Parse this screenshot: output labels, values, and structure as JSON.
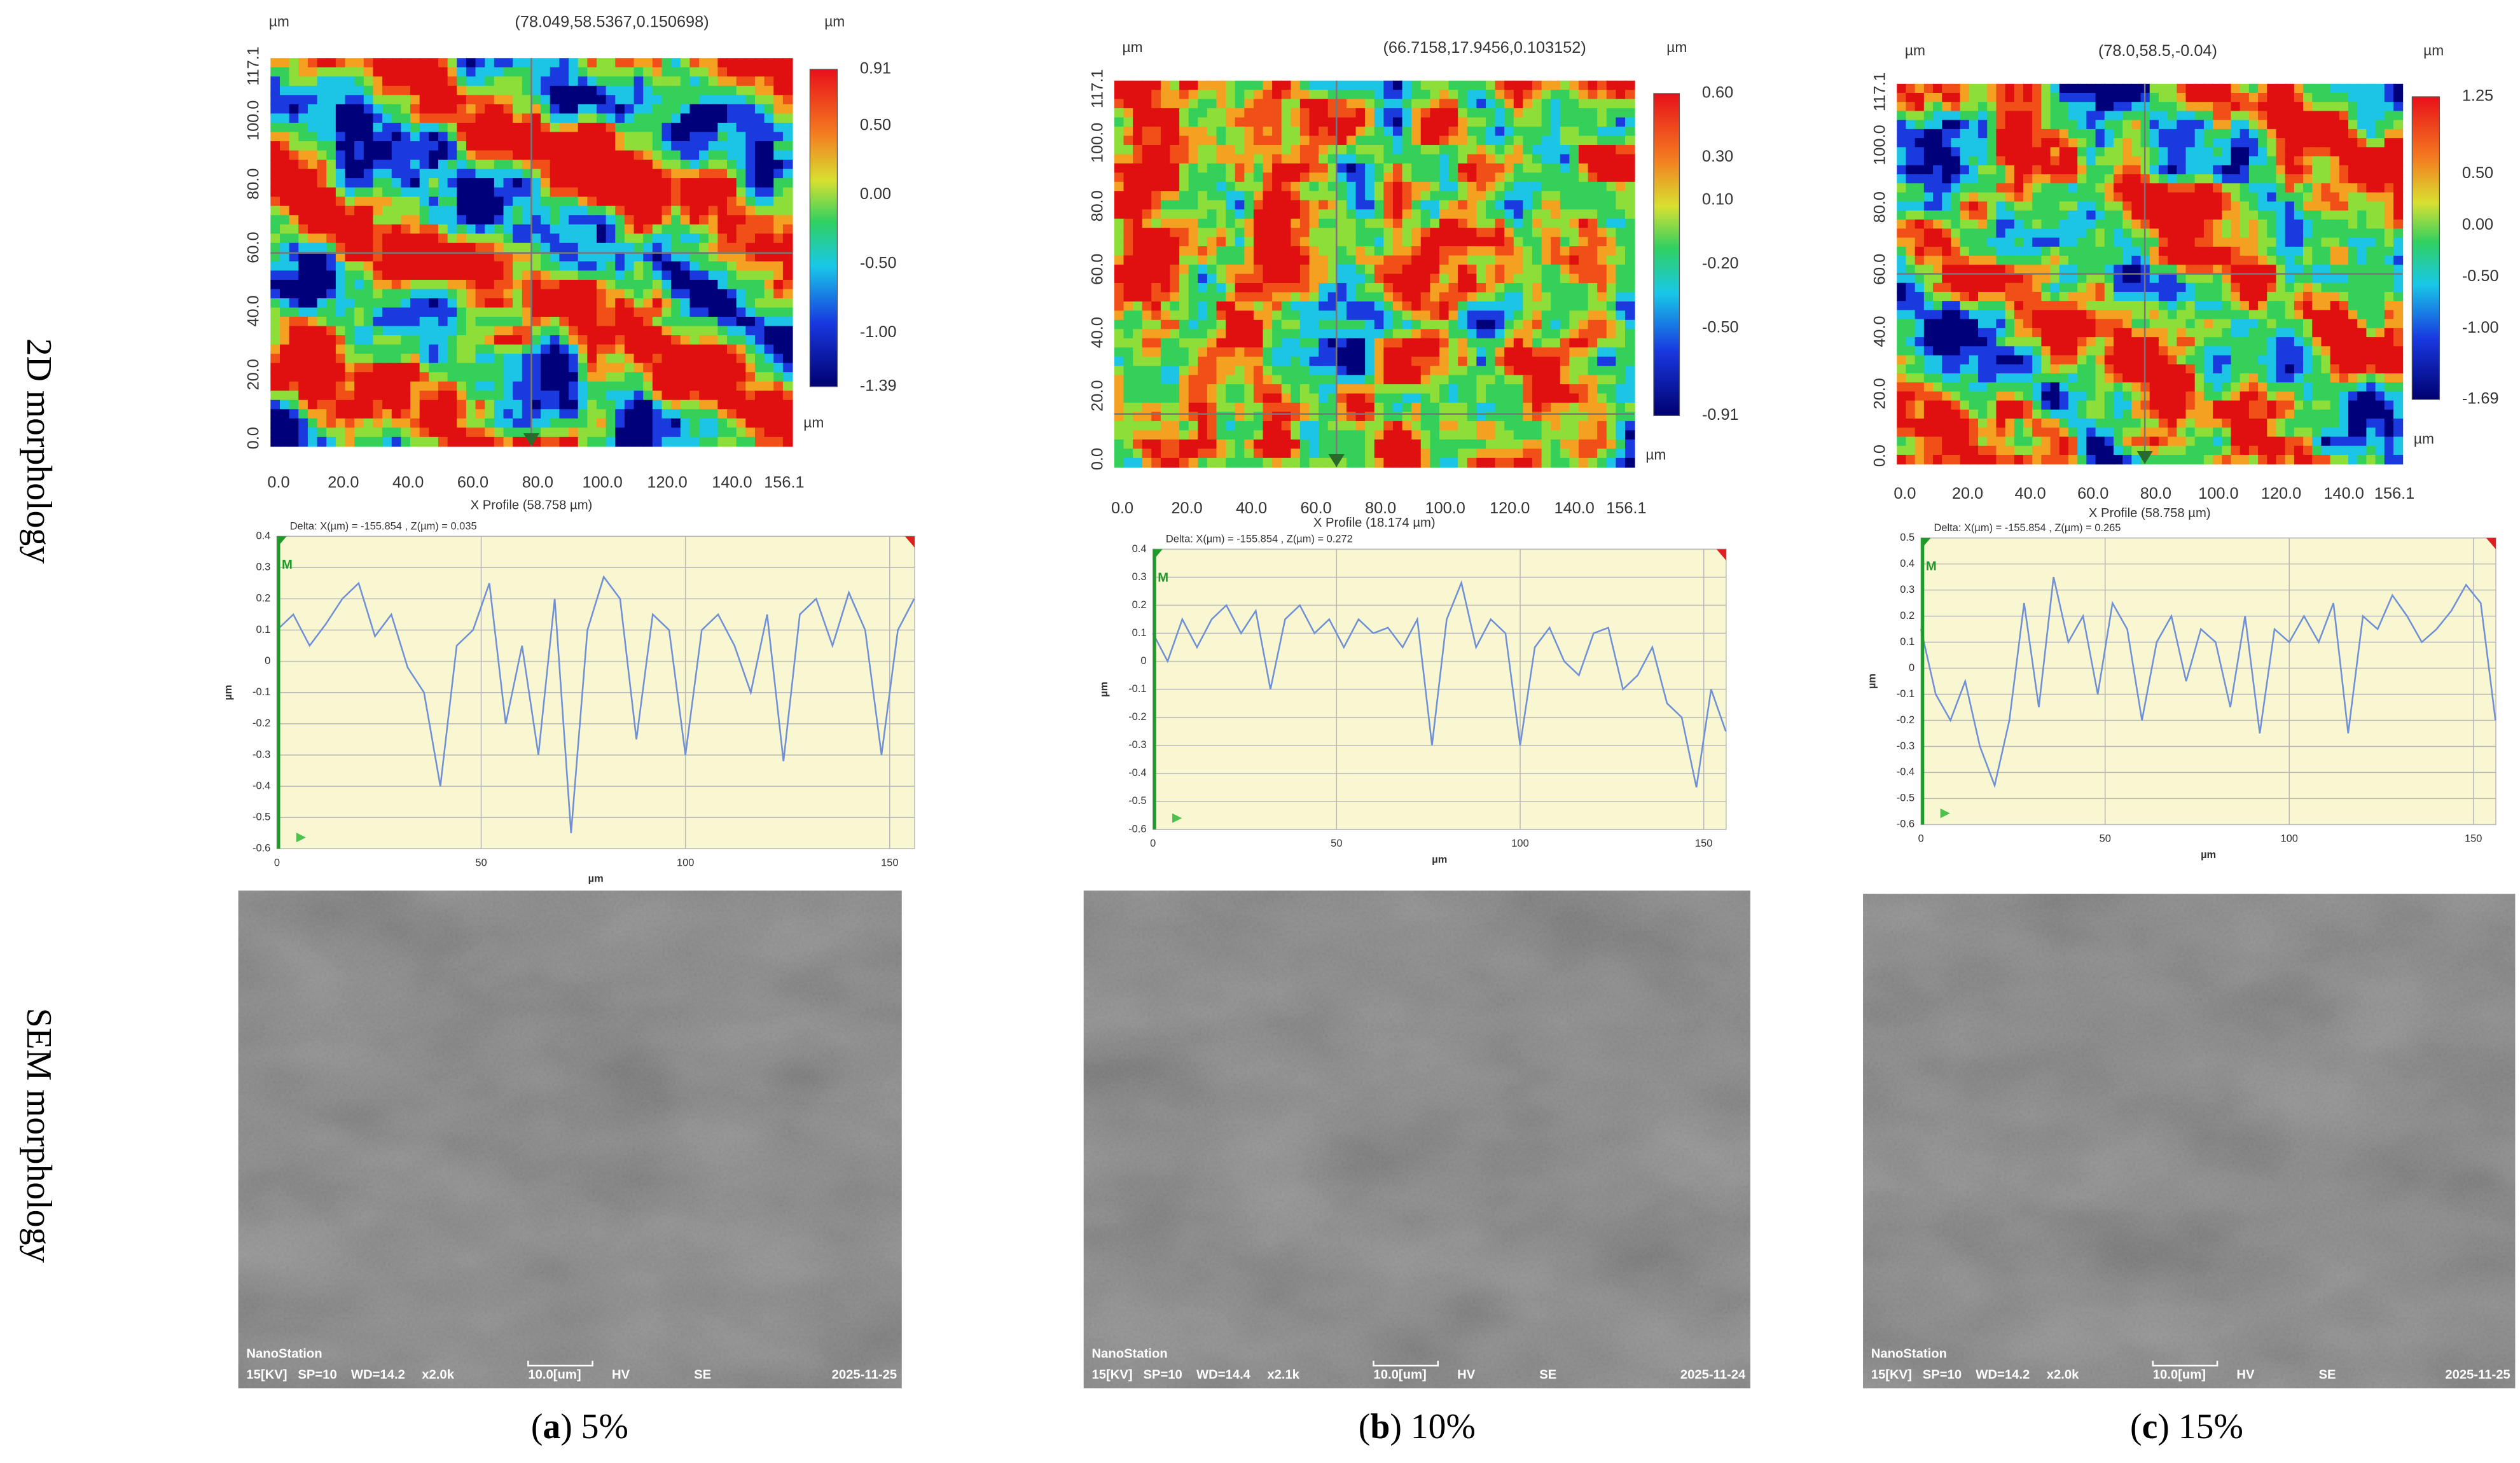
{
  "row_labels": [
    "2D morphology",
    "SEM morphology"
  ],
  "panels": [
    {
      "caption": [
        "(",
        "a",
        ") 5%"
      ],
      "map": {
        "coordinates": "(78.049,58.5367,0.150698)",
        "unit_top_left": "µm",
        "unit_top_right": "µm",
        "unit_bottom_right": "µm",
        "x_profile": "X Profile (58.758 µm)",
        "xticks": [
          "0.0",
          "20.0",
          "40.0",
          "60.0",
          "80.0",
          "100.0",
          "120.0",
          "140.0",
          "156.1"
        ],
        "yticks": [
          "0.0",
          "20.0",
          "40.0",
          "60.0",
          "80.0",
          "100.0",
          "117.1"
        ],
        "colorbar": [
          "0.91",
          "0.50",
          "0.00",
          "-0.50",
          "-1.00",
          "-1.39"
        ]
      },
      "sem": {
        "brand": "NanoStation",
        "info": [
          "15[KV]",
          "SP=10",
          "WD=14.2",
          "x2.0k",
          "10.0[um]",
          "HV",
          "SE",
          "2025-11-25"
        ]
      }
    },
    {
      "caption": [
        "(",
        "b",
        ") 10%"
      ],
      "map": {
        "coordinates": "(66.7158,17.9456,0.103152)",
        "unit_top_left": "µm",
        "unit_top_right": "µm",
        "unit_bottom_right": "µm",
        "x_profile": "X Profile (18.174 µm)",
        "xticks": [
          "0.0",
          "20.0",
          "40.0",
          "60.0",
          "80.0",
          "100.0",
          "120.0",
          "140.0",
          "156.1"
        ],
        "yticks": [
          "0.0",
          "20.0",
          "40.0",
          "60.0",
          "80.0",
          "100.0",
          "117.1"
        ],
        "colorbar": [
          "0.60",
          "0.30",
          "0.10",
          "-0.20",
          "-0.50",
          "-0.91"
        ]
      },
      "sem": {
        "brand": "NanoStation",
        "info": [
          "15[KV]",
          "SP=10",
          "WD=14.4",
          "x2.1k",
          "10.0[um]",
          "HV",
          "SE",
          "2025-11-24"
        ]
      }
    },
    {
      "caption": [
        "(",
        "c",
        ") 15%"
      ],
      "map": {
        "coordinates": "(78.0,58.5,-0.04)",
        "unit_top_left": "µm",
        "unit_top_right": "µm",
        "unit_bottom_right": "µm",
        "x_profile": "X Profile (58.758 µm)",
        "xticks": [
          "0.0",
          "20.0",
          "40.0",
          "60.0",
          "80.0",
          "100.0",
          "120.0",
          "140.0",
          "156.1"
        ],
        "yticks": [
          "0.0",
          "20.0",
          "40.0",
          "60.0",
          "80.0",
          "100.0",
          "117.1"
        ],
        "colorbar": [
          "1.25",
          "0.50",
          "0.00",
          "-0.50",
          "-1.00",
          "-1.69"
        ]
      },
      "sem": {
        "brand": "NanoStation",
        "info": [
          "15[KV]",
          "SP=10",
          "WD=14.2",
          "x2.0k",
          "10.0[um]",
          "HV",
          "SE",
          "2025-11-25"
        ]
      }
    }
  ],
  "chart_data": [
    {
      "type": "line",
      "delta": "Delta: X(µm) = -155.854 , Z(µm) = 0.035",
      "marker": "M",
      "xlabel": "µm",
      "ylabel": "µm",
      "color": "#6f8fd6",
      "x": [
        0,
        4,
        8,
        12,
        16,
        20,
        24,
        28,
        32,
        36,
        40,
        44,
        48,
        52,
        56,
        60,
        64,
        68,
        72,
        76,
        80,
        84,
        88,
        92,
        96,
        100,
        104,
        108,
        112,
        116,
        120,
        124,
        128,
        132,
        136,
        140,
        144,
        148,
        152,
        156
      ],
      "values": [
        0.1,
        0.15,
        0.05,
        0.12,
        0.2,
        0.25,
        0.08,
        0.15,
        -0.02,
        -0.1,
        -0.4,
        0.05,
        0.1,
        0.25,
        -0.2,
        0.05,
        -0.3,
        0.2,
        -0.55,
        0.1,
        0.27,
        0.2,
        -0.25,
        0.15,
        0.1,
        -0.3,
        0.1,
        0.15,
        0.05,
        -0.1,
        0.15,
        -0.32,
        0.15,
        0.2,
        0.05,
        0.22,
        0.1,
        -0.3,
        0.1,
        0.2
      ],
      "xlim": [
        0,
        156.1
      ],
      "ylim": [
        -0.6,
        0.4
      ],
      "xticks": [
        0,
        50,
        100,
        150
      ],
      "yticks": [
        0.4,
        0.3,
        0.2,
        0.1,
        0,
        -0.1,
        -0.2,
        -0.3,
        -0.4,
        -0.5,
        -0.6
      ],
      "grid": true
    },
    {
      "type": "line",
      "delta": "Delta: X(µm) = -155.854 , Z(µm) = 0.272",
      "marker": "M",
      "xlabel": "µm",
      "ylabel": "µm",
      "color": "#6f8fd6",
      "x": [
        0,
        4,
        8,
        12,
        16,
        20,
        24,
        28,
        32,
        36,
        40,
        44,
        48,
        52,
        56,
        60,
        64,
        68,
        72,
        76,
        80,
        84,
        88,
        92,
        96,
        100,
        104,
        108,
        112,
        116,
        120,
        124,
        128,
        132,
        136,
        140,
        144,
        148,
        152,
        156
      ],
      "values": [
        0.1,
        0.0,
        0.15,
        0.05,
        0.15,
        0.2,
        0.1,
        0.18,
        -0.1,
        0.15,
        0.2,
        0.1,
        0.15,
        0.05,
        0.15,
        0.1,
        0.12,
        0.05,
        0.15,
        -0.3,
        0.15,
        0.28,
        0.05,
        0.15,
        0.1,
        -0.3,
        0.05,
        0.12,
        0.0,
        -0.05,
        0.1,
        0.12,
        -0.1,
        -0.05,
        0.05,
        -0.15,
        -0.2,
        -0.45,
        -0.1,
        -0.25
      ],
      "xlim": [
        0,
        156.1
      ],
      "ylim": [
        -0.6,
        0.4
      ],
      "xticks": [
        0,
        50,
        100,
        150
      ],
      "yticks": [
        0.4,
        0.3,
        0.2,
        0.1,
        0,
        -0.1,
        -0.2,
        -0.3,
        -0.4,
        -0.5,
        -0.6
      ],
      "grid": true
    },
    {
      "type": "line",
      "delta": "Delta: X(µm) = -155.854 , Z(µm) = 0.265",
      "marker": "M",
      "xlabel": "µm",
      "ylabel": "µm",
      "color": "#6f8fd6",
      "x": [
        0,
        4,
        8,
        12,
        16,
        20,
        24,
        28,
        32,
        36,
        40,
        44,
        48,
        52,
        56,
        60,
        64,
        68,
        72,
        76,
        80,
        84,
        88,
        92,
        96,
        100,
        104,
        108,
        112,
        116,
        120,
        124,
        128,
        132,
        136,
        140,
        144,
        148,
        152,
        156
      ],
      "values": [
        0.15,
        -0.1,
        -0.2,
        -0.05,
        -0.3,
        -0.45,
        -0.2,
        0.25,
        -0.15,
        0.35,
        0.1,
        0.2,
        -0.1,
        0.25,
        0.15,
        -0.2,
        0.1,
        0.2,
        -0.05,
        0.15,
        0.1,
        -0.15,
        0.2,
        -0.25,
        0.15,
        0.1,
        0.2,
        0.1,
        0.25,
        -0.25,
        0.2,
        0.15,
        0.28,
        0.2,
        0.1,
        0.15,
        0.22,
        0.32,
        0.25,
        -0.2
      ],
      "xlim": [
        0,
        156.1
      ],
      "ylim": [
        -0.6,
        0.5
      ],
      "xticks": [
        0,
        50,
        100,
        150
      ],
      "yticks": [
        0.5,
        0.4,
        0.3,
        0.2,
        0.1,
        0,
        -0.1,
        -0.2,
        -0.3,
        -0.4,
        -0.5,
        -0.6
      ],
      "grid": true
    }
  ]
}
